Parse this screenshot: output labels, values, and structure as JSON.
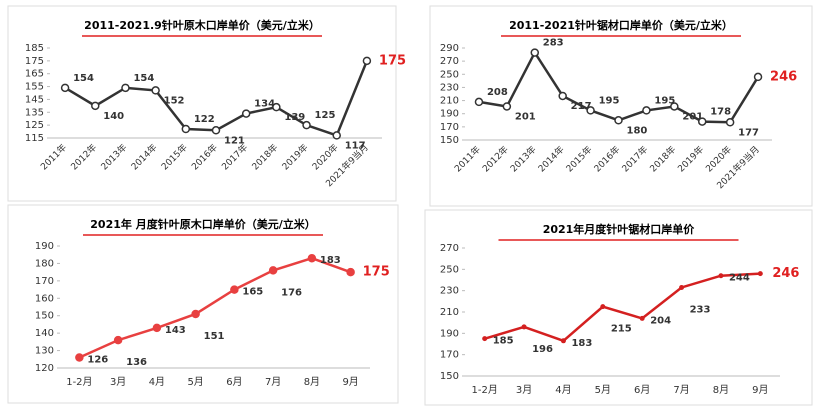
{
  "chart_data": [
    {
      "type": "line",
      "title": "2011-2021.9针叶原木口岸单价（美元/立米）",
      "categories": [
        "2011年",
        "2012年",
        "2013年",
        "2014年",
        "2015年",
        "2016年",
        "2017年",
        "2018年",
        "2019年",
        "2020年",
        "2021年9当月"
      ],
      "series": [
        {
          "color": "#333333",
          "values": [
            154,
            140,
            154,
            152,
            122,
            121,
            134,
            139,
            125,
            117,
            175
          ]
        }
      ],
      "ylim": [
        115,
        185
      ],
      "yticks": [
        115,
        125,
        135,
        145,
        155,
        165,
        175,
        185
      ],
      "last_label_color": "#e02020"
    },
    {
      "type": "line",
      "title": "2011-2021针叶锯材口岸单价（美元/立米）",
      "categories": [
        "2011年",
        "2012年",
        "2013年",
        "2014年",
        "2015年",
        "2016年",
        "2017年",
        "2018年",
        "2019年",
        "2020年",
        "2021年9当月"
      ],
      "series": [
        {
          "color": "#333333",
          "values": [
            208,
            201,
            283,
            217,
            195,
            180,
            195,
            201,
            178,
            177,
            246
          ]
        }
      ],
      "ylim": [
        150,
        290
      ],
      "yticks": [
        150,
        170,
        190,
        210,
        230,
        250,
        270,
        290
      ],
      "last_label_color": "#e02020"
    },
    {
      "type": "line",
      "title": "2021年 月度针叶原木口岸单价（美元/立米）",
      "categories": [
        "1-2月",
        "3月",
        "4月",
        "5月",
        "6月",
        "7月",
        "8月",
        "9月"
      ],
      "series": [
        {
          "color": "#e84040",
          "values": [
            126,
            136,
            143,
            151,
            165,
            176,
            183,
            175
          ]
        }
      ],
      "ylim": [
        120,
        190
      ],
      "yticks": [
        120,
        130,
        140,
        150,
        160,
        170,
        180,
        190
      ],
      "last_label_color": "#e02020"
    },
    {
      "type": "line",
      "title": "2021年月度针叶锯材口岸单价",
      "categories": [
        "1-2月",
        "3月",
        "4月",
        "5月",
        "6月",
        "7月",
        "8月",
        "9月"
      ],
      "series": [
        {
          "color": "#d42020",
          "values": [
            185,
            196,
            183,
            215,
            204,
            233,
            244,
            246
          ]
        }
      ],
      "ylim": [
        150,
        270
      ],
      "yticks": [
        150,
        170,
        190,
        210,
        230,
        250,
        270
      ],
      "last_label_color": "#e02020"
    }
  ]
}
